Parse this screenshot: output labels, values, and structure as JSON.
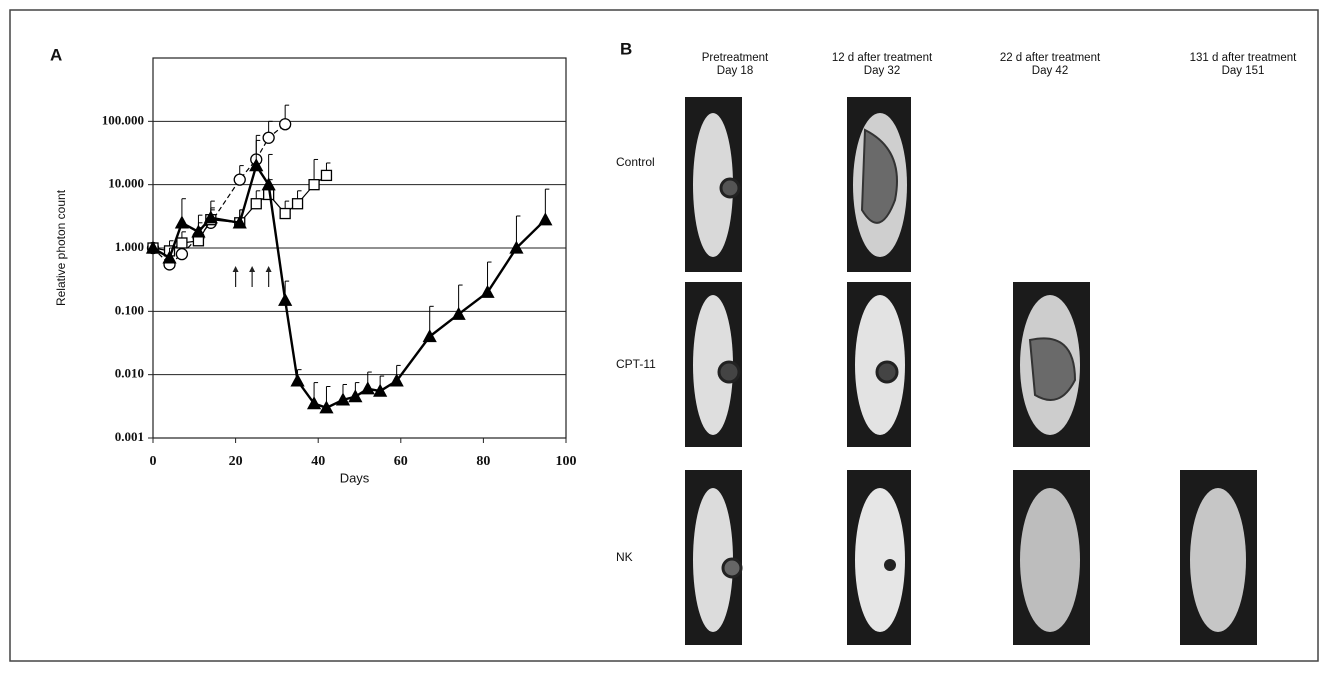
{
  "chart_data": {
    "type": "line",
    "panel_label": "A",
    "x_label": "Days",
    "y_label": "Relative photon count",
    "log_scale": true,
    "grid": true,
    "xlim": [
      0,
      100
    ],
    "ylim": [
      0.001,
      1000
    ],
    "xticks": [
      0,
      20,
      40,
      60,
      80,
      100
    ],
    "yticks": [
      {
        "value": 0.001,
        "label": "0.001"
      },
      {
        "value": 0.01,
        "label": "0.010"
      },
      {
        "value": 0.1,
        "label": "0.100"
      },
      {
        "value": 1,
        "label": "1.000"
      },
      {
        "value": 10,
        "label": "10.000"
      },
      {
        "value": 100,
        "label": "100.000"
      }
    ],
    "arrow_days": [
      20,
      24,
      28
    ],
    "series": [
      {
        "color": "#000000",
        "marker": "circle",
        "dashed": true,
        "x": [
          0,
          4,
          7,
          11,
          14,
          21,
          25,
          28,
          32
        ],
        "values": [
          1.0,
          0.55,
          0.8,
          1.5,
          2.5,
          12,
          25,
          55,
          90
        ],
        "errors": [
          0.2,
          0.2,
          0.4,
          1.0,
          1.5,
          8,
          35,
          45,
          90
        ]
      },
      {
        "color": "#000000",
        "marker": "square",
        "dashed": false,
        "x": [
          0,
          4,
          7,
          11,
          14,
          21,
          25,
          28,
          32,
          35,
          39,
          42
        ],
        "values": [
          1.0,
          0.9,
          1.2,
          1.3,
          2.8,
          2.5,
          5,
          7,
          3.5,
          5,
          10,
          14
        ],
        "errors": [
          0.2,
          0.4,
          0.6,
          0.8,
          1.5,
          1.5,
          3,
          5,
          2,
          3,
          15,
          8
        ]
      },
      {
        "color": "#000000",
        "marker": "triangle",
        "dashed": false,
        "x": [
          0,
          4,
          7,
          11,
          14,
          21,
          25,
          28,
          32,
          35,
          39,
          42,
          46,
          49,
          52,
          55,
          59,
          67,
          74,
          81,
          88,
          95
        ],
        "values": [
          1.0,
          0.7,
          2.5,
          1.8,
          3.0,
          2.5,
          20,
          10,
          0.15,
          0.008,
          0.0035,
          0.003,
          0.004,
          0.0045,
          0.006,
          0.0055,
          0.008,
          0.04,
          0.09,
          0.2,
          1.0,
          2.8
        ],
        "errors": [
          0.2,
          0.3,
          3.5,
          1.5,
          2.5,
          1.5,
          30,
          20,
          0.15,
          0.004,
          0.004,
          0.0035,
          0.003,
          0.003,
          0.005,
          0.004,
          0.006,
          0.08,
          0.17,
          0.4,
          2.2,
          5.7
        ]
      }
    ]
  },
  "panel_b": {
    "label": "B",
    "columns": [
      [
        "Pretreatment",
        "Day 18"
      ],
      [
        "12 d after treatment",
        "Day 32"
      ],
      [
        "22 d after treatment",
        "Day 42"
      ],
      [
        "131 d after treatment",
        "Day 151"
      ]
    ],
    "rows": [
      "Control",
      "CPT-11",
      "NK"
    ]
  }
}
